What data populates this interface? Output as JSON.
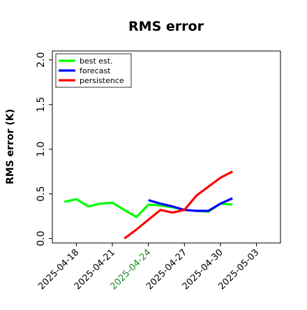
{
  "chart_data": {
    "type": "line",
    "title": "RMS error",
    "xlabel": "",
    "ylabel": "RMS error (K)",
    "ylim": [
      -0.05,
      2.1
    ],
    "yticks": [
      0.0,
      0.5,
      1.0,
      1.5,
      2.0
    ],
    "ytick_labels": [
      "0.0",
      "0.5",
      "1.0",
      "1.5",
      "2.0"
    ],
    "xlim": [
      "2025-04-16T00:00",
      "2025-05-05T00:00"
    ],
    "xticks": [
      "2025-04-18",
      "2025-04-21",
      "2025-04-24",
      "2025-04-27",
      "2025-04-30",
      "2025-05-03"
    ],
    "xtick_labels": [
      "2025-04-18",
      "2025-04-21",
      "2025-04-24",
      "2025-04-27",
      "2025-04-30",
      "2025-05-03"
    ],
    "highlighted_xtick": "2025-04-24",
    "grid": false,
    "legend_position": "top-left",
    "series": [
      {
        "name": "best est.",
        "color": "#00ff00",
        "x": [
          "2025-04-17T00:00",
          "2025-04-18T00:00",
          "2025-04-19T00:00",
          "2025-04-20T00:00",
          "2025-04-21T00:00",
          "2025-04-22T00:00",
          "2025-04-23T00:00",
          "2025-04-24T00:00",
          "2025-04-25T00:00",
          "2025-04-26T00:00",
          "2025-04-27T00:00",
          "2025-04-28T00:00",
          "2025-04-29T00:00",
          "2025-04-30T00:00",
          "2025-05-01T00:00"
        ],
        "values": [
          0.41,
          0.44,
          0.36,
          0.39,
          0.4,
          0.32,
          0.24,
          0.38,
          0.37,
          0.35,
          0.32,
          0.31,
          0.3,
          0.39,
          0.38
        ]
      },
      {
        "name": "forecast",
        "color": "#0000ff",
        "x": [
          "2025-04-24T00:00",
          "2025-04-25T00:00",
          "2025-04-26T00:00",
          "2025-04-27T00:00",
          "2025-04-28T00:00",
          "2025-04-29T00:00",
          "2025-04-30T00:00",
          "2025-05-01T00:00"
        ],
        "values": [
          0.43,
          0.39,
          0.36,
          0.32,
          0.31,
          0.31,
          0.39,
          0.45
        ]
      },
      {
        "name": "persistence",
        "color": "#ff0000",
        "x": [
          "2025-04-22T00:00",
          "2025-04-23T00:00",
          "2025-04-24T00:00",
          "2025-04-25T00:00",
          "2025-04-26T00:00",
          "2025-04-27T00:00",
          "2025-04-28T00:00",
          "2025-04-29T00:00",
          "2025-04-30T00:00",
          "2025-05-01T00:00"
        ],
        "values": [
          0.0,
          0.1,
          0.21,
          0.32,
          0.29,
          0.32,
          0.48,
          0.58,
          0.68,
          0.75
        ]
      }
    ]
  }
}
